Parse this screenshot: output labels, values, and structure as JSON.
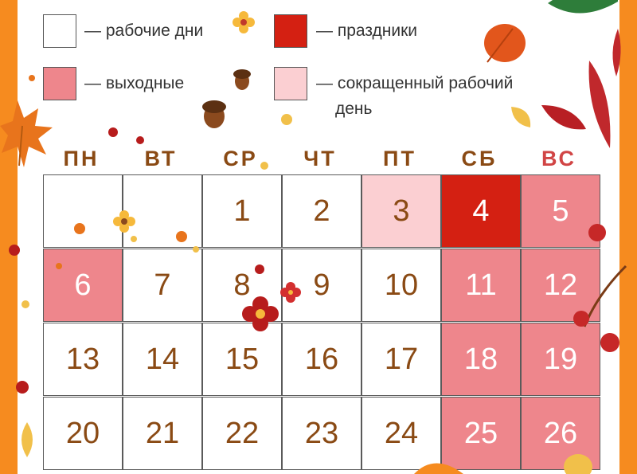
{
  "colors": {
    "frame": "#f68b1f",
    "workday": "#ffffff",
    "holiday": "#d42012",
    "weekend": "#ee868c",
    "short_day": "#fbcfd2",
    "weekday_header": "#8a4a14",
    "sunday_header": "#d14545"
  },
  "legend": {
    "workdays": "— рабочие дни",
    "holidays": "— праздники",
    "weekends": "— выходные",
    "short_day_line1": "— сокращенный рабочий",
    "short_day_line2": "день"
  },
  "weekdays": [
    "ПН",
    "ВТ",
    "СР",
    "ЧТ",
    "ПТ",
    "СБ",
    "ВС"
  ],
  "weeks": [
    [
      {
        "d": "",
        "t": "work"
      },
      {
        "d": "",
        "t": "work"
      },
      {
        "d": "1",
        "t": "work"
      },
      {
        "d": "2",
        "t": "work"
      },
      {
        "d": "3",
        "t": "short"
      },
      {
        "d": "4",
        "t": "holiday"
      },
      {
        "d": "5",
        "t": "weekend"
      }
    ],
    [
      {
        "d": "6",
        "t": "weekend"
      },
      {
        "d": "7",
        "t": "work"
      },
      {
        "d": "8",
        "t": "work"
      },
      {
        "d": "9",
        "t": "work"
      },
      {
        "d": "10",
        "t": "work"
      },
      {
        "d": "11",
        "t": "weekend"
      },
      {
        "d": "12",
        "t": "weekend"
      }
    ],
    [
      {
        "d": "13",
        "t": "work"
      },
      {
        "d": "14",
        "t": "work"
      },
      {
        "d": "15",
        "t": "work"
      },
      {
        "d": "16",
        "t": "work"
      },
      {
        "d": "17",
        "t": "work"
      },
      {
        "d": "18",
        "t": "weekend"
      },
      {
        "d": "19",
        "t": "weekend"
      }
    ],
    [
      {
        "d": "20",
        "t": "work"
      },
      {
        "d": "21",
        "t": "work"
      },
      {
        "d": "22",
        "t": "work"
      },
      {
        "d": "23",
        "t": "work"
      },
      {
        "d": "24",
        "t": "work"
      },
      {
        "d": "25",
        "t": "weekend"
      },
      {
        "d": "26",
        "t": "weekend"
      }
    ]
  ]
}
